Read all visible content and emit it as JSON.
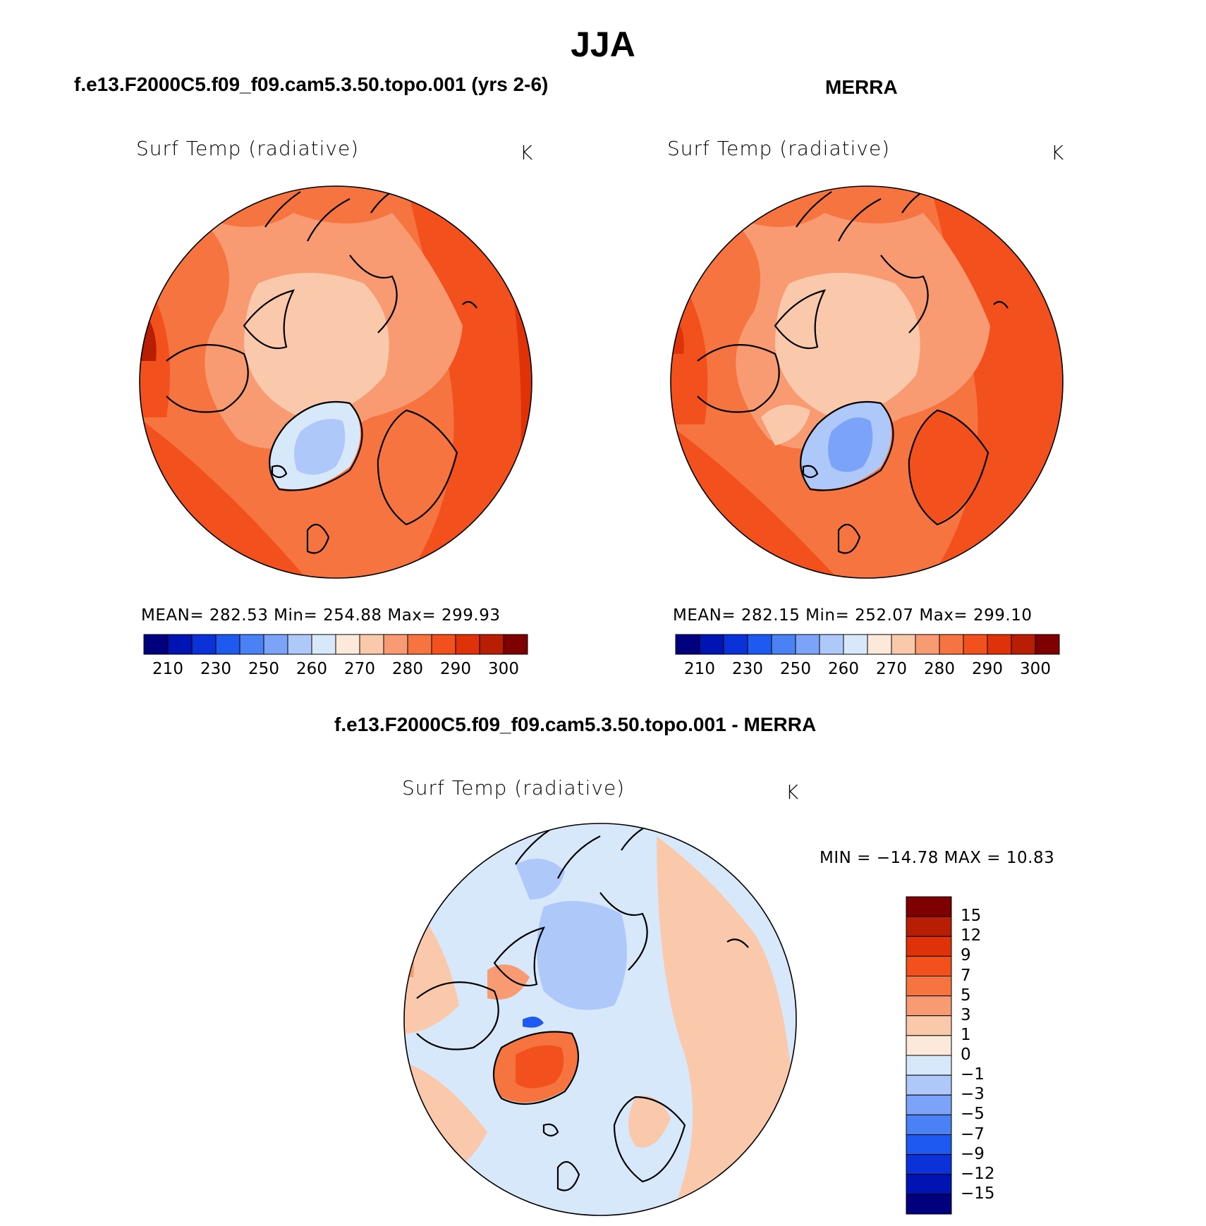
{
  "figure_title": "JJA",
  "colors": {
    "abs_scale": [
      "#00007f",
      "#0014b4",
      "#0a32d8",
      "#1e5af0",
      "#4a82f5",
      "#7ba4f8",
      "#aec8fa",
      "#d8e8fb",
      "#fde9d9",
      "#fac8aa",
      "#f89a72",
      "#f6743f",
      "#f2501d",
      "#e03208",
      "#b71e04",
      "#7f0000"
    ],
    "diff_scale": [
      "#00007f",
      "#0014b4",
      "#0a32d8",
      "#1e5af0",
      "#4a82f5",
      "#7ba4f8",
      "#aec8fa",
      "#d8e8fb",
      "#fde9d9",
      "#fac8aa",
      "#f89a72",
      "#f6743f",
      "#f2501d",
      "#e03208",
      "#b71e04",
      "#7f0000"
    ]
  },
  "panels": [
    {
      "title": "f.e13.F2000C5.f09_f09.cam5.3.50.topo.001 (yrs 2-6)",
      "variable": "Surf Temp (radiative)",
      "units": "K",
      "stats": "MEAN=  282.53    Min=  254.88    Max=  299.93",
      "colorbar_labels": [
        "210",
        "230",
        "250",
        "260",
        "270",
        "280",
        "290",
        "300"
      ]
    },
    {
      "title": "MERRA",
      "variable": "Surf Temp (radiative)",
      "units": "K",
      "stats": "MEAN=  282.15    Min=  252.07    Max=  299.10",
      "colorbar_labels": [
        "210",
        "230",
        "250",
        "260",
        "270",
        "280",
        "290",
        "300"
      ]
    },
    {
      "title": "f.e13.F2000C5.f09_f09.cam5.3.50.topo.001 - MERRA",
      "variable": "Surf Temp (radiative)",
      "units": "K",
      "stats": "MIN  =  −14.78  MAX  =    10.83",
      "colorbar_labels": [
        "15",
        "12",
        "9",
        "7",
        "5",
        "3",
        "1",
        "0",
        "−1",
        "−3",
        "−5",
        "−7",
        "−9",
        "−12",
        "−15"
      ]
    }
  ]
}
